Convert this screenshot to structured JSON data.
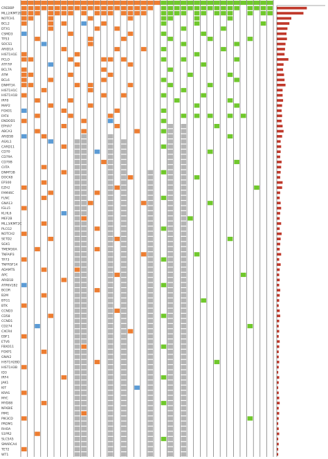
{
  "chart_data": {
    "type": "heatmap",
    "legend_colors": {
      "o": "#ed7d31",
      "b": "#5b9bd5",
      "g": "#b4b4b4",
      "G": "#70c82c"
    },
    "column_groups": "oooooooooooooooooooooGGGGGGGGGGGGGGGGG",
    "genes": [
      "CREBBP",
      "MLL2/KMT2D",
      "NOTCH1",
      "BCL2",
      "DTX1",
      "CSMD3",
      "TP53",
      "SOCS1",
      "ARID1A",
      "HIST1H1E",
      "PCLO",
      "ATF7IP",
      "BCL7A",
      "ATM",
      "BCL6",
      "DNMT3A",
      "HIST1H1C",
      "HIST1H1B",
      "IRF8",
      "MAP2",
      "FOXO1",
      "FAT4",
      "ENDOD1",
      "EPHA7",
      "ABCA3",
      "ARID5B",
      "ASXL1",
      "CARD11",
      "CD70",
      "CD79A",
      "CD79B",
      "CIITA",
      "DNMT3B",
      "DOCK8",
      "EP300",
      "EZH2",
      "FAM46C",
      "FLNC",
      "GNA13",
      "IGLL5",
      "KLHL6",
      "MEF2B",
      "MLL3/KMT2C",
      "PLCG2",
      "NOTCH2",
      "SETD2",
      "SGK1",
      "TMEM30A",
      "TNFAIP3",
      "TP73",
      "TNFRSF14",
      "ADAMTS",
      "APC",
      "ARID1B",
      "ATP6V1B2",
      "BCOR",
      "B2M",
      "BTG1",
      "BTK",
      "CCND3",
      "CD58",
      "CCND1",
      "CD274",
      "CXCR4",
      "EBF1",
      "ETV6",
      "FBXO11",
      "FOXP1",
      "GNAI2",
      "HIST1H2BD",
      "HIST1H3B",
      "ID3",
      "IRF4",
      "JAK1",
      "KIT",
      "KRAS",
      "MYC",
      "MYD88",
      "NFKBIE",
      "PIM1",
      "PIK3CD",
      "PRDM1",
      "RHOA",
      "S1PR2",
      "SLC5A5",
      "SMARCA4",
      "TET2",
      "WT1"
    ],
    "matrix": [
      "oooooooooooooooooooo.",
      "ooo.oooo.o.ooo.oooo..",
      "oo..o.....o.....o....",
      "o...o.o..b..o........",
      "....o......o..o......",
      "b......o........o....",
      "..o.......o....o.....",
      "...b......o..........",
      "......o.......o...o..",
      "o.......o............",
      "oo.....o....oo.o.....",
      "....b...o.......o....",
      "o...........o........",
      "oo.....o.....o.......",
      "o...o.......o........",
      "oo......o.o.....o....",
      "...o......o..........",
      "o...........o..o.....",
      "..o....o.............",
      "....o.....o..........",
      "b.....o.......o......",
      "..o....o.....o.......",
      "o........o...b.......",
      "......o.......o......",
      "..o......o.......o...",
      "b..o.....g...g.......",
      "....b...gg...g.g.....",
      "......o.gg...g.g.....",
      "........gg.b.g.g.....",
      "........gg...g.g.....",
      "........gg..og.g.....",
      "...o....gg...g.g.....",
      "......o.gg...g.g...g.",
      "........gg...g.go..g.",
      "...o....gg...g.g...g.",
      "o.......gg...gog...g.",
      "....o...gg.o.g.g...g.",
      "...o....gg...g.g...g.",
      "........ggo..g.g..og.",
      "o.......gg...g.g...g.",
      "......b.gg...g.g...g.",
      "........go...g.g...g.",
      "...o....gg...g.g...g.",
      "........gg.o.g.g...g.",
      "o.......gg...g.g...g.",
      "....o...gg...gog...g.",
      "........gg...g.g...g.",
      "..o.....gg.o.g.g...g.",
      "........gg...g.g..og.",
      "o.......gg...g.g...g.",
      "........gg...g.g...g.",
      "...o....og...g.g...g.",
      "........gg...gog...g.",
      "......o.gg...g.g...g.",
      "b.......gg...g.g...g.",
      "........gg.o.g.g...g.",
      "...o....gg...g.g...g.",
      "........gg...g.g...g.",
      "o.......gg...g.g...g.",
      "........gg...gog...g.",
      "....o...gg...g.g...g.",
      "........gg...g.g...g.",
      "..b.....gg...g.g...g.",
      "........gg...g.go..g.",
      "o.......gg...g.g...g.",
      "........gg...g.g...g.",
      "........go...g.g...g.",
      "...o....gg...g.g...g.",
      "........gg...g.g...g.",
      "........gg.o.g.g...g.",
      "o.......gg...g.g...g.",
      "........gg...g.g...g.",
      "......o.gg...g.g...g.",
      "........gg...g.g...g.",
      "........gg...g.g.b.g.",
      "o.......gg...g.g...g.",
      "........gg...g.g...g.",
      "...o....gg...g.g...g.",
      "........gg...g.g...g.",
      "........go...g.g...g.",
      "o.......gg...g.g...g.",
      "........gg...g.g...g.",
      "........gg...g.g...g.",
      "..o.....gg...g.g...g.",
      "........gg...g.g...g.",
      "........gg...g.g...g.",
      "o.......gg...g.g...g.",
      "........gg...g.g...g."
    ],
    "matrix_b": [
      "GGGGGGGGGGGG.GGGG",
      "GGGG.GG.GGG..G.GG",
      "GG...G....G......",
      "G....G.........G.",
      "...G.....G.......",
      "G.....G..........",
      ".G.....G.....G...",
      "...G.......G.....",
      "G........G.......",
      ".....G...........",
      "G..G.......G.....",
      "......G..........",
      ".G...............",
      "....G.....G......",
      "G..........G.....",
      ".G.....G.........",
      "...G.............",
      "G.....G..........",
      "..G.......G......",
      ".....G.....G.....",
      "G................",
      "...G.G.G..G.G....",
      "G................",
      ".g.g....G........",
      "Gg.g.............",
      ".g.g......G......",
      ".g.g.............",
      "Gg.g.............",
      ".g.g...G.........",
      ".g.g.............",
      ".g.g.......G.....",
      ".g.g.............",
      "Gg.g.............",
      ".g.g.G...........",
      ".g.g.............",
      ".g.g..........G..",
      ".g.g.............",
      "Gg.g.............",
      ".g.g...G.........",
      ".g.g.............",
      ".g.g.............",
      ".g.gG............",
      ".g.g.............",
      "Gg.g.............",
      ".g.g.............",
      ".g.g......G......",
      ".g.g.............",
      ".g.g.............",
      ".g.g.G...........",
      "Gg.g.............",
      ".g.g.............",
      ".g.g.............",
      ".g.g........G....",
      ".g.g.............",
      "Gg.g.............",
      ".g.g.............",
      ".g.g.............",
      ".g.g..G..........",
      ".g.g.............",
      ".g.g.............",
      "Gg.g.............",
      ".g.g.............",
      ".g.g.........G...",
      ".g.g.............",
      ".g.g.............",
      ".g.g.............",
      "Gg.g.............",
      ".g.g.............",
      ".g.g.............",
      ".g.g....G........",
      ".g.g.............",
      ".g.g.............",
      "Gg.g.............",
      ".g.g.............",
      ".g.g.............",
      ".g.g.............",
      ".g.g.............",
      "Gg.g.............",
      ".g.g.............",
      ".g.g.............",
      ".g.g.........G...",
      ".g.g.............",
      ".g.g.............",
      ".g.g.............",
      "Gg.g.............",
      ".g.g.............",
      ".g.g.............",
      ".g.g............."
    ],
    "bar_color": "#c0392b",
    "xlim": [
      0,
      100
    ],
    "values": [
      62,
      55,
      30,
      26,
      22,
      20,
      21,
      18,
      17,
      16,
      24,
      14,
      13,
      15,
      16,
      18,
      12,
      12,
      13,
      11,
      10,
      11,
      10,
      12,
      14,
      11,
      8,
      9,
      8,
      7,
      10,
      9,
      8,
      7,
      12,
      11,
      7,
      6,
      8,
      9,
      7,
      6,
      9,
      6,
      10,
      8,
      7,
      6,
      9,
      5,
      8,
      6,
      5,
      6,
      5,
      7,
      6,
      5,
      4,
      6,
      7,
      5,
      4,
      5,
      4,
      6,
      5,
      4,
      4,
      5,
      4,
      3,
      5,
      4,
      3,
      4,
      5,
      6,
      4,
      5,
      4,
      3,
      4,
      5,
      3,
      4,
      3,
      3
    ]
  }
}
